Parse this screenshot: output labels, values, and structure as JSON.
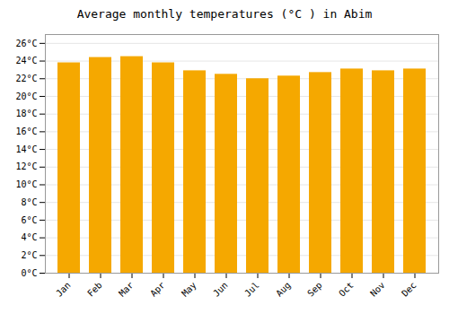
{
  "chart_data": {
    "type": "bar",
    "title": "Average monthly temperatures (°C ) in Abim",
    "categories": [
      "Jan",
      "Feb",
      "Mar",
      "Apr",
      "May",
      "Jun",
      "Jul",
      "Aug",
      "Sep",
      "Oct",
      "Nov",
      "Dec"
    ],
    "values": [
      23.8,
      24.4,
      24.5,
      23.8,
      22.9,
      22.5,
      22.0,
      22.3,
      22.7,
      23.1,
      22.9,
      23.1
    ],
    "color": "#F5A800",
    "ylim": [
      0,
      27
    ],
    "yticks": [
      {
        "value": 0,
        "label": "0°C"
      },
      {
        "value": 2,
        "label": "2°C"
      },
      {
        "value": 4,
        "label": "4°C"
      },
      {
        "value": 6,
        "label": "6°C"
      },
      {
        "value": 8,
        "label": "8°C"
      },
      {
        "value": 10,
        "label": "10°C"
      },
      {
        "value": 12,
        "label": "12°C"
      },
      {
        "value": 14,
        "label": "14°C"
      },
      {
        "value": 16,
        "label": "16°C"
      },
      {
        "value": 18,
        "label": "18°C"
      },
      {
        "value": 20,
        "label": "20°C"
      },
      {
        "value": 22,
        "label": "22°C"
      },
      {
        "value": 24,
        "label": "24°C"
      },
      {
        "value": 26,
        "label": "26°C"
      }
    ],
    "grid": true
  }
}
